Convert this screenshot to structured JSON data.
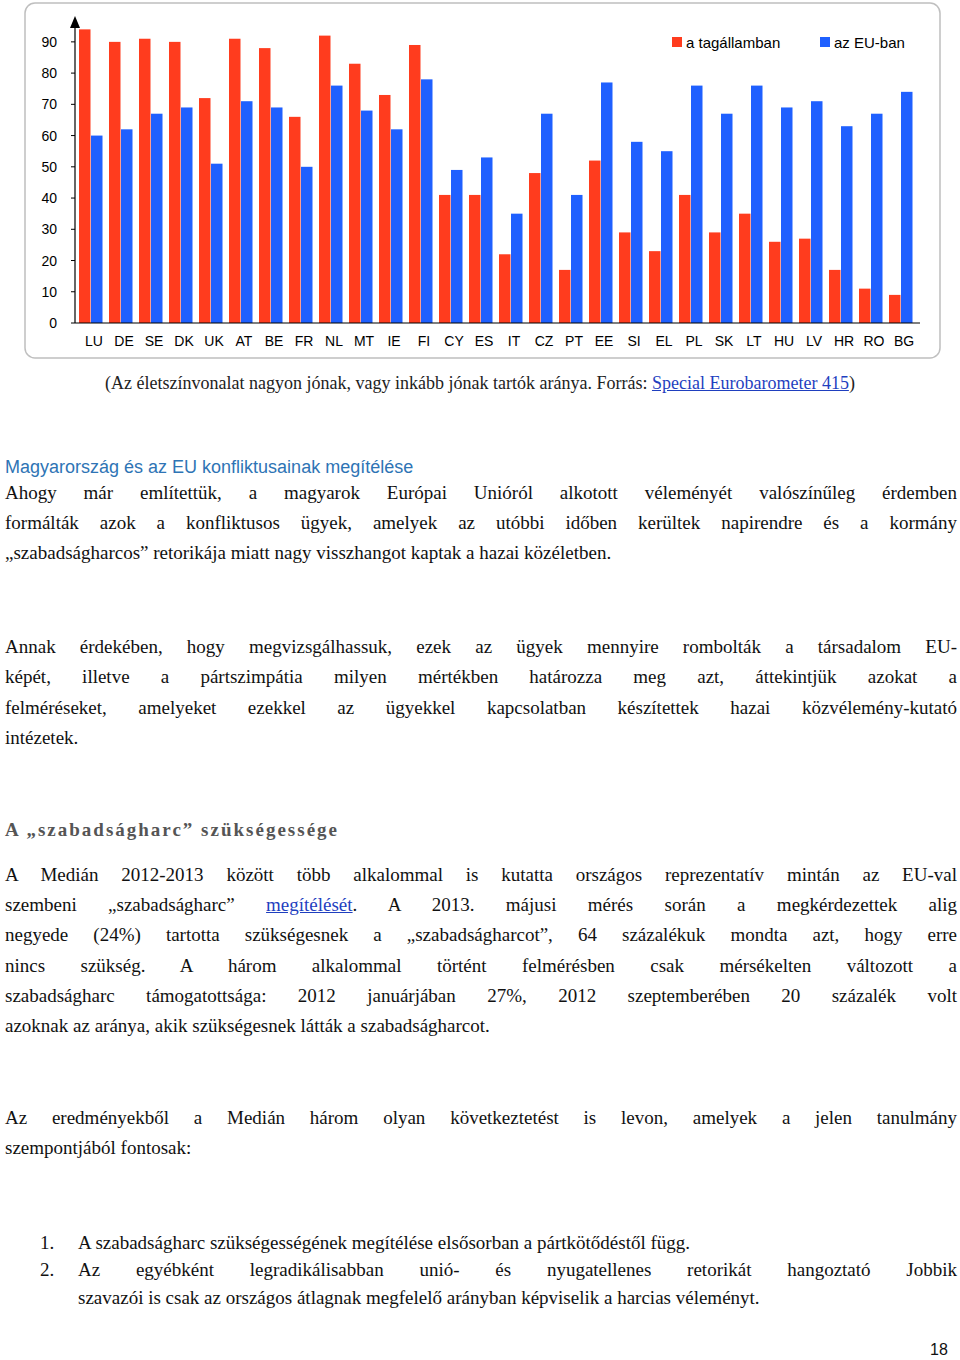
{
  "chart_data": {
    "type": "bar",
    "categories": [
      "LU",
      "DE",
      "SE",
      "DK",
      "UK",
      "AT",
      "BE",
      "FR",
      "NL",
      "MT",
      "IE",
      "FI",
      "CY",
      "ES",
      "IT",
      "CZ",
      "PT",
      "EE",
      "SI",
      "EL",
      "PL",
      "SK",
      "LT",
      "HU",
      "LV",
      "HR",
      "RO",
      "BG"
    ],
    "series": [
      {
        "name": "a tagállamban",
        "color": "#ff3c1e",
        "values": [
          94,
          90,
          91,
          90,
          72,
          91,
          88,
          66,
          92,
          83,
          73,
          89,
          41,
          41,
          22,
          48,
          17,
          52,
          29,
          23,
          41,
          29,
          35,
          26,
          27,
          17,
          11,
          9
        ]
      },
      {
        "name": "az EU-ban",
        "color": "#1f60ff",
        "values": [
          60,
          62,
          67,
          69,
          51,
          71,
          69,
          50,
          76,
          68,
          62,
          78,
          49,
          53,
          35,
          67,
          41,
          77,
          58,
          55,
          76,
          67,
          76,
          69,
          71,
          63,
          67,
          74
        ]
      }
    ],
    "ylim": [
      0,
      97
    ],
    "yticks": [
      0,
      10,
      20,
      30,
      40,
      50,
      60,
      70,
      80,
      90
    ],
    "legend": "top-right",
    "grid": false
  },
  "caption": {
    "before": "(Az életszínvonalat nagyon jónak, vagy inkább jónak tartók aránya. Forrás: ",
    "link": "Special Eurobarometer 415",
    "after": ")"
  },
  "heading1": "Magyarország és az EU konfliktusainak megítélése",
  "paragraph1": {
    "lines": [
      "Ahogy már említettük, a magyarok Európai Unióról alkotott véleményét valószínűleg érdemben",
      "formálták azok a konfliktusos ügyek, amelyek az utóbbi időben kerültek napirendre és a kormány",
      "„szabadságharcos” retorikája miatt nagy visszhangot kaptak a hazai közéletben."
    ]
  },
  "paragraph2": {
    "lines": [
      "Annak érdekében, hogy megvizsgálhassuk, ezek az ügyek mennyire rombolták a társadalom EU-",
      "képét, illetve a pártszimpátia milyen mértékben határozza meg azt, áttekintjük azokat a",
      "felméréseket, amelyeket ezekkel az ügyekkel kapcsolatban készítettek hazai közvélemény-kutató",
      "intézetek."
    ]
  },
  "heading2": "A „szabadságharc” szükségessége",
  "paragraph3": {
    "lines": [
      "A Medián 2012-2013 között több alkalommal is kutatta országos reprezentatív mintán az EU-val",
      [
        {
          "text": "szembeni „szabadságharc” "
        },
        {
          "text": "megítélését",
          "link": true
        },
        {
          "text": ". A 2013. májusi mérés során a megkérdezettek alig"
        }
      ],
      "negyede (24%) tartotta szükségesnek a „szabadságharcot”, 64 százalékuk mondta azt, hogy erre",
      "nincs szükség. A három alkalommal történt felmérésben csak mérsékelten változott a",
      "szabadságharc támogatottsága: 2012 januárjában 27%, 2012 szeptemberében 20 százalék volt",
      "azoknak az aránya, akik szükségesnek látták a szabadságharcot."
    ]
  },
  "paragraph4": {
    "lines": [
      "Az eredményekből a Medián három olyan következtetést is levon, amelyek a jelen tanulmány",
      "szempontjából fontosak:"
    ]
  },
  "list": [
    {
      "number": "1.",
      "lines": [
        "A szabadságharc szükségességének megítélése elsősorban a pártkötődéstől függ."
      ]
    },
    {
      "number": "2.",
      "lines": [
        "Az egyébként legradikálisabban unió- és nyugatellenes retorikát hangoztató Jobbik",
        "szavazói is csak az országos átlagnak megfelelő arányban képviselik a harcias véleményt."
      ]
    }
  ],
  "page_number": "18"
}
